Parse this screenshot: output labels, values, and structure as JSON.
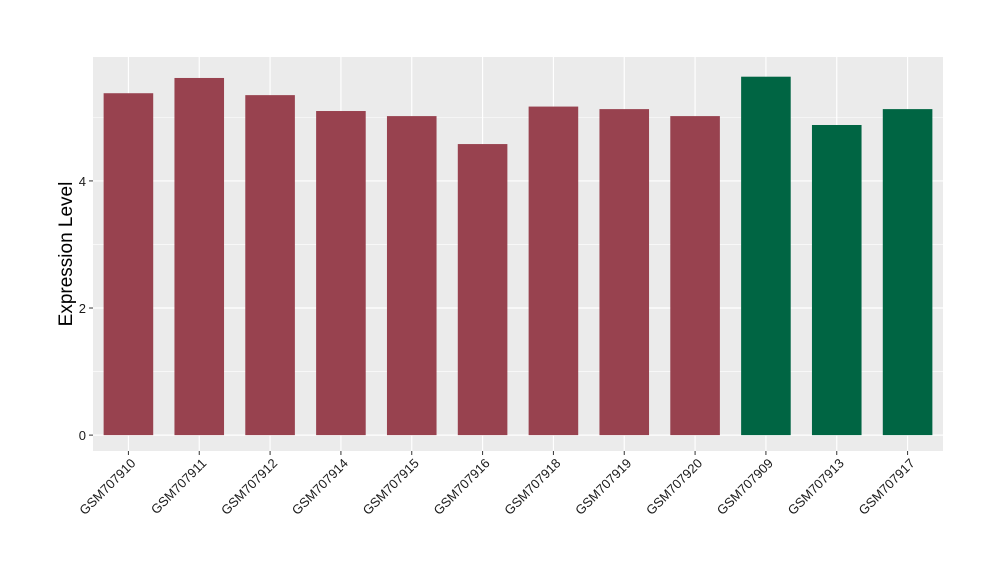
{
  "chart_data": {
    "type": "bar",
    "title": "",
    "xlabel": "",
    "ylabel": "Expression Level",
    "ylim": [
      -0.25,
      5.95
    ],
    "yticks": [
      0,
      2,
      4
    ],
    "grid": true,
    "categories": [
      "GSM707910",
      "GSM707911",
      "GSM707912",
      "GSM707914",
      "GSM707915",
      "GSM707916",
      "GSM707918",
      "GSM707919",
      "GSM707920",
      "GSM707909",
      "GSM707913",
      "GSM707917"
    ],
    "values": [
      5.38,
      5.62,
      5.35,
      5.1,
      5.02,
      4.58,
      5.17,
      5.13,
      5.02,
      5.64,
      4.88,
      5.13
    ],
    "bar_colors": [
      "#98424F",
      "#98424F",
      "#98424F",
      "#98424F",
      "#98424F",
      "#98424F",
      "#98424F",
      "#98424F",
      "#98424F",
      "#006543",
      "#006543",
      "#006543"
    ],
    "panel_background": "#EBEBEB",
    "grid_color": "#FFFFFF",
    "tick_label_color": "#1A1A1A"
  }
}
